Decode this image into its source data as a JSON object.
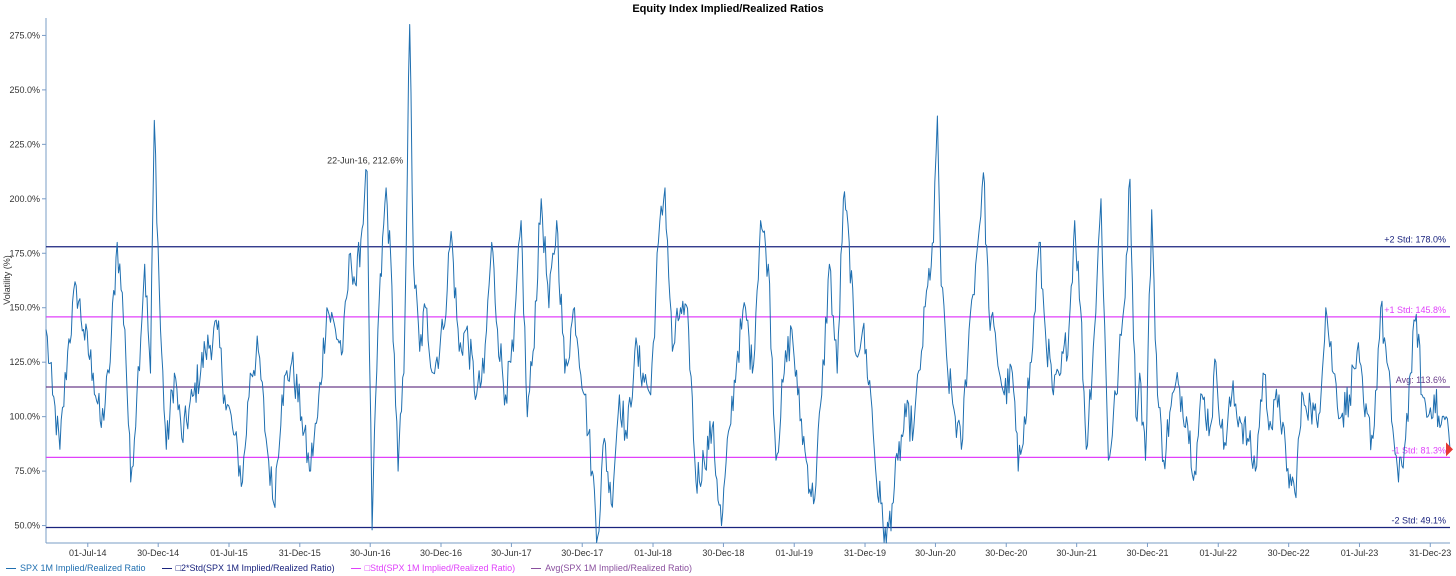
{
  "chart_data": {
    "type": "line",
    "title": "Equity Index Implied/Realized Ratios",
    "ylabel": "Volatility (%)",
    "ylim": [
      42,
      283
    ],
    "yticks": [
      "50.0%",
      "75.0%",
      "100.0%",
      "125.0%",
      "150.0%",
      "175.0%",
      "200.0%",
      "225.0%",
      "250.0%",
      "275.0%"
    ],
    "ytick_values": [
      50,
      75,
      100,
      125,
      150,
      175,
      200,
      225,
      250,
      275
    ],
    "xlim": [
      "2014-03-15",
      "2024-02-20"
    ],
    "xticks": [
      "01-Jul-14",
      "30-Dec-14",
      "01-Jul-15",
      "31-Dec-15",
      "30-Jun-16",
      "30-Dec-16",
      "30-Jun-17",
      "30-Dec-17",
      "01-Jul-18",
      "30-Dec-18",
      "01-Jul-19",
      "31-Dec-19",
      "30-Jun-20",
      "30-Dec-20",
      "30-Jun-21",
      "30-Dec-21",
      "01-Jul-22",
      "30-Dec-22",
      "01-Jul-23",
      "31-Dec-23"
    ],
    "xtick_dates": [
      "2014-07-01",
      "2014-12-30",
      "2015-07-01",
      "2015-12-31",
      "2016-06-30",
      "2016-12-30",
      "2017-06-30",
      "2017-12-30",
      "2018-07-01",
      "2018-12-30",
      "2019-07-01",
      "2019-12-31",
      "2020-06-30",
      "2020-12-30",
      "2021-06-30",
      "2021-12-30",
      "2022-07-01",
      "2022-12-30",
      "2023-07-01",
      "2023-12-31"
    ],
    "series": [
      {
        "name": "SPX 1M Implied/Realized Ratio",
        "color": "#1f6fb0",
        "anchors": [
          [
            "2014-03-15",
            140
          ],
          [
            "2014-04-01",
            110
          ],
          [
            "2014-04-20",
            85
          ],
          [
            "2014-05-10",
            130
          ],
          [
            "2014-06-01",
            160
          ],
          [
            "2014-06-20",
            140
          ],
          [
            "2014-07-15",
            120
          ],
          [
            "2014-08-05",
            95
          ],
          [
            "2014-08-25",
            120
          ],
          [
            "2014-09-15",
            180
          ],
          [
            "2014-10-05",
            140
          ],
          [
            "2014-10-20",
            70
          ],
          [
            "2014-11-05",
            110
          ],
          [
            "2014-11-25",
            170
          ],
          [
            "2014-12-10",
            120
          ],
          [
            "2014-12-20",
            236
          ],
          [
            "2015-01-05",
            140
          ],
          [
            "2015-01-20",
            85
          ],
          [
            "2015-02-10",
            120
          ],
          [
            "2015-03-01",
            90
          ],
          [
            "2015-04-01",
            110
          ],
          [
            "2015-05-01",
            130
          ],
          [
            "2015-06-01",
            140
          ],
          [
            "2015-06-20",
            110
          ],
          [
            "2015-07-10",
            95
          ],
          [
            "2015-08-05",
            70
          ],
          [
            "2015-08-25",
            120
          ],
          [
            "2015-09-15",
            130
          ],
          [
            "2015-10-05",
            90
          ],
          [
            "2015-10-25",
            60
          ],
          [
            "2015-11-15",
            110
          ],
          [
            "2015-12-10",
            125
          ],
          [
            "2016-01-05",
            100
          ],
          [
            "2016-01-25",
            75
          ],
          [
            "2016-02-15",
            100
          ],
          [
            "2016-03-10",
            150
          ],
          [
            "2016-04-01",
            140
          ],
          [
            "2016-04-20",
            130
          ],
          [
            "2016-05-10",
            175
          ],
          [
            "2016-05-25",
            160
          ],
          [
            "2016-06-15",
            200
          ],
          [
            "2016-06-22",
            212.6
          ],
          [
            "2016-06-28",
            130
          ],
          [
            "2016-07-05",
            48
          ],
          [
            "2016-07-20",
            140
          ],
          [
            "2016-08-10",
            205
          ],
          [
            "2016-08-25",
            160
          ],
          [
            "2016-09-10",
            75
          ],
          [
            "2016-09-25",
            120
          ],
          [
            "2016-10-10",
            280
          ],
          [
            "2016-10-20",
            170
          ],
          [
            "2016-11-05",
            130
          ],
          [
            "2016-11-20",
            150
          ],
          [
            "2016-12-10",
            120
          ],
          [
            "2017-01-05",
            140
          ],
          [
            "2017-01-25",
            185
          ],
          [
            "2017-02-15",
            130
          ],
          [
            "2017-03-05",
            140
          ],
          [
            "2017-04-01",
            110
          ],
          [
            "2017-04-20",
            120
          ],
          [
            "2017-05-10",
            180
          ],
          [
            "2017-05-25",
            140
          ],
          [
            "2017-06-15",
            110
          ],
          [
            "2017-07-05",
            130
          ],
          [
            "2017-07-25",
            190
          ],
          [
            "2017-08-10",
            100
          ],
          [
            "2017-08-25",
            130
          ],
          [
            "2017-09-15",
            200
          ],
          [
            "2017-10-05",
            150
          ],
          [
            "2017-10-25",
            190
          ],
          [
            "2017-11-15",
            120
          ],
          [
            "2017-12-10",
            150
          ],
          [
            "2018-01-05",
            110
          ],
          [
            "2018-01-25",
            75
          ],
          [
            "2018-02-08",
            45
          ],
          [
            "2018-02-25",
            90
          ],
          [
            "2018-03-15",
            60
          ],
          [
            "2018-04-05",
            110
          ],
          [
            "2018-04-25",
            90
          ],
          [
            "2018-05-15",
            130
          ],
          [
            "2018-06-05",
            120
          ],
          [
            "2018-06-25",
            110
          ],
          [
            "2018-07-15",
            180
          ],
          [
            "2018-08-01",
            205
          ],
          [
            "2018-08-20",
            130
          ],
          [
            "2018-09-10",
            150
          ],
          [
            "2018-10-01",
            140
          ],
          [
            "2018-10-20",
            70
          ],
          [
            "2018-11-10",
            80
          ],
          [
            "2018-12-01",
            95
          ],
          [
            "2018-12-25",
            50
          ],
          [
            "2019-01-15",
            95
          ],
          [
            "2019-02-05",
            130
          ],
          [
            "2019-02-25",
            150
          ],
          [
            "2019-03-15",
            120
          ],
          [
            "2019-04-05",
            190
          ],
          [
            "2019-04-25",
            170
          ],
          [
            "2019-05-15",
            80
          ],
          [
            "2019-06-05",
            120
          ],
          [
            "2019-06-25",
            140
          ],
          [
            "2019-07-10",
            110
          ],
          [
            "2019-08-01",
            80
          ],
          [
            "2019-08-20",
            60
          ],
          [
            "2019-09-10",
            110
          ],
          [
            "2019-09-30",
            170
          ],
          [
            "2019-10-20",
            120
          ],
          [
            "2019-11-05",
            200
          ],
          [
            "2019-11-20",
            180
          ],
          [
            "2019-12-05",
            130
          ],
          [
            "2019-12-25",
            140
          ],
          [
            "2020-01-15",
            110
          ],
          [
            "2020-01-30",
            70
          ],
          [
            "2020-02-10",
            60
          ],
          [
            "2020-02-24",
            42
          ],
          [
            "2020-03-10",
            60
          ],
          [
            "2020-03-25",
            80
          ],
          [
            "2020-04-15",
            100
          ],
          [
            "2020-05-05",
            95
          ],
          [
            "2020-05-25",
            130
          ],
          [
            "2020-06-10",
            160
          ],
          [
            "2020-06-25",
            180
          ],
          [
            "2020-07-05",
            238
          ],
          [
            "2020-07-15",
            160
          ],
          [
            "2020-08-01",
            120
          ],
          [
            "2020-08-20",
            100
          ],
          [
            "2020-09-05",
            85
          ],
          [
            "2020-09-25",
            140
          ],
          [
            "2020-10-15",
            175
          ],
          [
            "2020-11-01",
            212
          ],
          [
            "2020-11-15",
            150
          ],
          [
            "2020-12-05",
            130
          ],
          [
            "2020-12-25",
            110
          ],
          [
            "2021-01-15",
            120
          ],
          [
            "2021-01-30",
            75
          ],
          [
            "2021-02-15",
            100
          ],
          [
            "2021-03-05",
            125
          ],
          [
            "2021-03-25",
            180
          ],
          [
            "2021-04-10",
            140
          ],
          [
            "2021-05-01",
            110
          ],
          [
            "2021-05-20",
            120
          ],
          [
            "2021-06-10",
            140
          ],
          [
            "2021-06-25",
            190
          ],
          [
            "2021-07-10",
            150
          ],
          [
            "2021-07-25",
            85
          ],
          [
            "2021-08-15",
            140
          ],
          [
            "2021-09-01",
            200
          ],
          [
            "2021-09-20",
            80
          ],
          [
            "2021-10-10",
            110
          ],
          [
            "2021-10-30",
            150
          ],
          [
            "2021-11-15",
            209
          ],
          [
            "2021-11-30",
            100
          ],
          [
            "2021-12-10",
            120
          ],
          [
            "2021-12-25",
            80
          ],
          [
            "2022-01-10",
            195
          ],
          [
            "2022-01-25",
            110
          ],
          [
            "2022-02-10",
            80
          ],
          [
            "2022-03-01",
            105
          ],
          [
            "2022-03-20",
            115
          ],
          [
            "2022-04-10",
            100
          ],
          [
            "2022-05-01",
            75
          ],
          [
            "2022-05-20",
            110
          ],
          [
            "2022-06-10",
            95
          ],
          [
            "2022-06-25",
            125
          ],
          [
            "2022-07-15",
            85
          ],
          [
            "2022-08-05",
            110
          ],
          [
            "2022-08-25",
            100
          ],
          [
            "2022-09-15",
            90
          ],
          [
            "2022-10-05",
            75
          ],
          [
            "2022-10-25",
            120
          ],
          [
            "2022-11-15",
            95
          ],
          [
            "2022-12-05",
            110
          ],
          [
            "2022-12-25",
            75
          ],
          [
            "2023-01-15",
            65
          ],
          [
            "2023-02-05",
            110
          ],
          [
            "2023-02-25",
            105
          ],
          [
            "2023-03-15",
            95
          ],
          [
            "2023-04-05",
            150
          ],
          [
            "2023-04-25",
            120
          ],
          [
            "2023-05-15",
            100
          ],
          [
            "2023-06-05",
            110
          ],
          [
            "2023-06-25",
            130
          ],
          [
            "2023-07-15",
            100
          ],
          [
            "2023-08-05",
            90
          ],
          [
            "2023-08-25",
            150
          ],
          [
            "2023-09-10",
            125
          ],
          [
            "2023-09-25",
            95
          ],
          [
            "2023-10-10",
            70
          ],
          [
            "2023-10-25",
            85
          ],
          [
            "2023-11-10",
            120
          ],
          [
            "2023-11-25",
            147
          ],
          [
            "2023-12-10",
            110
          ],
          [
            "2023-12-25",
            100
          ],
          [
            "2024-01-10",
            110
          ],
          [
            "2024-01-25",
            95
          ],
          [
            "2024-02-10",
            100
          ],
          [
            "2024-02-20",
            85
          ]
        ]
      },
      {
        "name": "□2*Std(SPX 1M Implied/Realized Ratio)",
        "color": "#1a237e",
        "values": [
          178.0,
          49.1
        ]
      },
      {
        "name": "□Std(SPX 1M Implied/Realized Ratio)",
        "color": "#e040fb",
        "values": [
          145.8,
          81.3
        ]
      },
      {
        "name": "Avg(SPX 1M Implied/Realized Ratio)",
        "color": "#8a4f9e",
        "values": [
          113.6
        ]
      }
    ],
    "reference_lines": [
      {
        "label": "+2 Std: 178.0%",
        "value": 178.0,
        "color": "#1a237e"
      },
      {
        "label": "+1 Std: 145.8%",
        "value": 145.8,
        "color": "#e040fb"
      },
      {
        "label": "Avg: 113.6%",
        "value": 113.6,
        "color": "#6a3d8a"
      },
      {
        "label": "-1 Std: 81.3%",
        "value": 81.3,
        "color": "#e040fb"
      },
      {
        "label": "-2 Std: 49.1%",
        "value": 49.1,
        "color": "#1a237e"
      }
    ],
    "annotations": [
      {
        "label": "22-Jun-16, 212.6%",
        "x": "2016-06-22",
        "y": 212.6
      }
    ],
    "grid": false,
    "legend": "bottom-left"
  }
}
